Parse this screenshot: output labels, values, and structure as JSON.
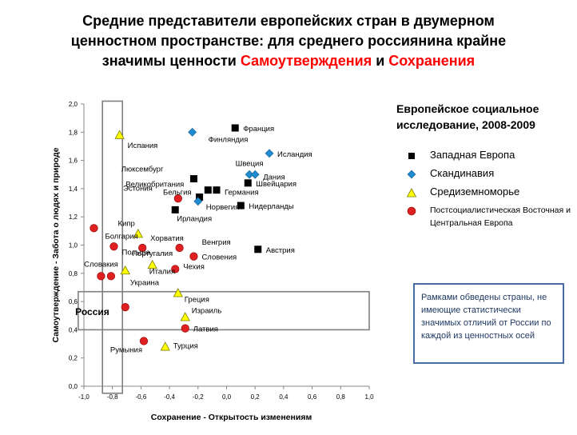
{
  "title": {
    "line1": "Средние представители европейских стран в двумерном",
    "line2": "ценностном пространстве: для среднего россиянина крайне",
    "line3_prefix": "значимы ценности ",
    "highlight1": "Самоутверждения",
    "conj": " и ",
    "highlight2": "Сохранения"
  },
  "legend": {
    "heading_line1": "Европейское социальное",
    "heading_line2": "исследование, 2008-2009",
    "items": [
      {
        "label": "Западная Европа",
        "shape": "square",
        "color": "#000000"
      },
      {
        "label": "Скандинавия",
        "shape": "diamond",
        "color": "#1f8bd1"
      },
      {
        "label": "Средиземноморье",
        "shape": "triangle",
        "color": "#ffff00"
      },
      {
        "label": "Постсоциалистическая Восточная и Центральная Европа",
        "shape": "circle",
        "color": "#e02020"
      }
    ]
  },
  "note": "Рамками обведены страны, не имеющие статистически значимых отличий от России по каждой из ценностных осей",
  "chart_data": {
    "type": "scatter",
    "xlabel": "Сохранение - Открытость изменениям",
    "ylabel": "Самоутверждение - Забота о людях и природе",
    "xlim": [
      -1.0,
      1.0
    ],
    "ylim": [
      0.0,
      2.0
    ],
    "xticks": [
      "-1,0",
      "-0,8",
      "-0,6",
      "-0,4",
      "-0,2",
      "0,0",
      "0,2",
      "0,4",
      "0,6",
      "0,8",
      "1,0"
    ],
    "yticks": [
      "0,0",
      "0,2",
      "0,4",
      "0,6",
      "0,8",
      "1,0",
      "1,2",
      "1,4",
      "1,6",
      "1,8",
      "2,0"
    ],
    "grid": false,
    "points": [
      {
        "label": "Франция",
        "x": 0.06,
        "y": 1.83,
        "group": "west",
        "lx": 10,
        "ly": 4
      },
      {
        "label": "Люксембург",
        "x": -0.23,
        "y": 1.47,
        "group": "west",
        "lx": -38,
        "ly": -9
      },
      {
        "label": "Великобритания",
        "x": -0.13,
        "y": 1.39,
        "group": "west",
        "lx": -30,
        "ly": -4
      },
      {
        "label": "Швейцария",
        "x": 0.15,
        "y": 1.44,
        "group": "west",
        "lx": 10,
        "ly": 4
      },
      {
        "label": "Германия",
        "x": -0.07,
        "y": 1.39,
        "group": "west",
        "lx": 10,
        "ly": 6
      },
      {
        "label": "Эстония",
        "x": -0.34,
        "y": 1.33,
        "group": "east",
        "lx": -32,
        "ly": -10
      },
      {
        "label": "Бельгия",
        "x": -0.19,
        "y": 1.34,
        "group": "west",
        "lx": -10,
        "ly": -3
      },
      {
        "label": "Норвегия",
        "x": -0.2,
        "y": 1.31,
        "group": "scand",
        "lx": 10,
        "ly": 10
      },
      {
        "label": "Нидерланды",
        "x": 0.1,
        "y": 1.28,
        "group": "west",
        "lx": 10,
        "ly": 4
      },
      {
        "label": "Ирландия",
        "x": -0.36,
        "y": 1.25,
        "group": "west",
        "lx": 2,
        "ly": 14
      },
      {
        "label": "Финляндия",
        "x": -0.24,
        "y": 1.8,
        "group": "scand",
        "lx": 20,
        "ly": 12
      },
      {
        "label": "Исландия",
        "x": 0.3,
        "y": 1.65,
        "group": "scand",
        "lx": 10,
        "ly": 4
      },
      {
        "label": "Швеция",
        "x": 0.16,
        "y": 1.5,
        "group": "scand",
        "lx": 0,
        "ly": -11
      },
      {
        "label": "Дания",
        "x": 0.2,
        "y": 1.5,
        "group": "scand",
        "lx": 10,
        "ly": 6
      },
      {
        "label": "Испания",
        "x": -0.75,
        "y": 1.78,
        "group": "med",
        "lx": 10,
        "ly": 16
      },
      {
        "label": "Кипр",
        "x": -0.62,
        "y": 1.08,
        "group": "med",
        "lx": -4,
        "ly": -10
      },
      {
        "label": "Хорватия",
        "x": -0.59,
        "y": 0.98,
        "group": "east",
        "lx": 10,
        "ly": -9
      },
      {
        "label": "Португалия",
        "x": -0.52,
        "y": 0.86,
        "group": "med",
        "lx": 0,
        "ly": -11
      },
      {
        "label": "Италия",
        "x": -0.71,
        "y": 0.82,
        "group": "med",
        "lx": 30,
        "ly": 4
      },
      {
        "label": "Болгария",
        "x": -0.93,
        "y": 1.12,
        "group": "east",
        "lx": 14,
        "ly": 13
      },
      {
        "label": "Польша",
        "x": -0.79,
        "y": 0.99,
        "group": "east",
        "lx": 10,
        "ly": 10
      },
      {
        "label": "Словакия",
        "x": -0.88,
        "y": 0.78,
        "group": "east",
        "lx": 0,
        "ly": -12
      },
      {
        "label": "Украина",
        "x": -0.81,
        "y": 0.78,
        "group": "east",
        "lx": 24,
        "ly": 11
      },
      {
        "label": "Венгрия",
        "x": -0.33,
        "y": 0.98,
        "group": "east",
        "lx": 28,
        "ly": -4
      },
      {
        "label": "Словения",
        "x": -0.23,
        "y": 0.92,
        "group": "east",
        "lx": 10,
        "ly": 4
      },
      {
        "label": "Чехия",
        "x": -0.36,
        "y": 0.83,
        "group": "east",
        "lx": 10,
        "ly": 0
      },
      {
        "label": "Австрия",
        "x": 0.22,
        "y": 0.97,
        "group": "west",
        "lx": 10,
        "ly": 4
      },
      {
        "label": "Греция",
        "x": -0.34,
        "y": 0.66,
        "group": "med",
        "lx": 8,
        "ly": 11
      },
      {
        "label": "Россия",
        "x": -0.71,
        "y": 0.56,
        "group": "east",
        "lx": -20,
        "ly": 10,
        "bold": true
      },
      {
        "label": "Израиль",
        "x": -0.29,
        "y": 0.49,
        "group": "med",
        "lx": 8,
        "ly": -5
      },
      {
        "label": "Латвия",
        "x": -0.29,
        "y": 0.41,
        "group": "east",
        "lx": 10,
        "ly": 4
      },
      {
        "label": "Турция",
        "x": -0.43,
        "y": 0.28,
        "group": "med",
        "lx": 10,
        "ly": 2
      },
      {
        "label": "Румыния",
        "x": -0.58,
        "y": 0.32,
        "group": "east",
        "lx": -2,
        "ly": 14
      }
    ],
    "frames": [
      {
        "x0": -0.87,
        "x1": -0.73,
        "y0": -0.05,
        "y1": 2.02
      },
      {
        "x0": -1.04,
        "x1": 1.0,
        "y0": 0.4,
        "y1": 0.67
      }
    ]
  },
  "colors": {
    "west": "#000000",
    "scand": "#1f8bd1",
    "med": "#ffff00",
    "east": "#e02020",
    "frame": "#7f7f7f",
    "note_border": "#4a6aa5"
  }
}
